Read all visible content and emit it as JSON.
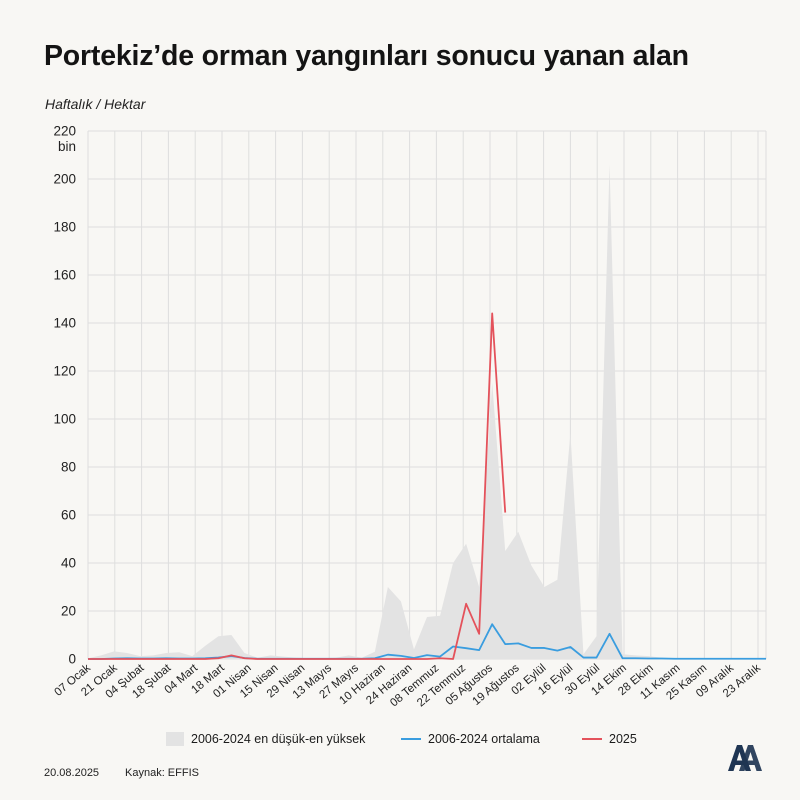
{
  "header": {
    "title": "Portekiz’de orman yangınları sonucu yanan alan",
    "subtitle": "Haftalık / Hektar"
  },
  "footer": {
    "date": "20.08.2025",
    "source": "Kaynak: EFFIS"
  },
  "logo": {
    "text": "AA",
    "icon": "anadolu-agency-logo"
  },
  "colors": {
    "range_fill": "#e3e3e3",
    "average_line": "#3a9ddf",
    "current_line": "#e4525b",
    "grid": "#dedede",
    "axis_text": "#222222"
  },
  "chart_data": {
    "type": "area",
    "xlabel": "",
    "ylabel": "",
    "y_unit_label": "bin",
    "ylim": [
      0,
      220
    ],
    "yticks": [
      0,
      20,
      40,
      60,
      80,
      100,
      120,
      140,
      160,
      180,
      200,
      220
    ],
    "grid": true,
    "legend_position": "bottom",
    "x_tick_labels": [
      "07 Ocak",
      "21 Ocak",
      "04 Şubat",
      "18 Şubat",
      "04 Mart",
      "18 Mart",
      "01 Nisan",
      "15 Nisan",
      "29 Nisan",
      "13 Mayıs",
      "27 Mayıs",
      "10 Haziran",
      "24 Haziran",
      "08 Temmuz",
      "22 Temmuz",
      "05 Ağustos",
      "19 Ağustos",
      "02 Eylül",
      "16 Eylül",
      "30 Eylül",
      "14 Ekim",
      "28 Ekim",
      "11 Kasım",
      "25 Kasım",
      "09 Aralık",
      "23 Aralık"
    ],
    "series": [
      {
        "name": "2006-2024 en düşük-en yüksek",
        "kind": "range",
        "low": [
          0,
          0,
          0,
          0,
          0,
          0,
          0,
          0,
          0,
          0,
          0,
          0,
          0,
          0,
          0,
          0,
          0,
          0,
          0,
          0,
          0,
          0,
          0,
          0,
          0,
          0,
          0,
          0,
          0,
          0,
          0,
          0,
          0,
          0,
          0,
          0,
          0,
          0,
          0,
          0,
          0,
          0,
          0,
          0,
          0,
          0,
          0,
          0,
          0,
          0,
          0,
          0,
          0
        ],
        "high": [
          0.3,
          1.5,
          3.2,
          2.5,
          1.2,
          1.5,
          2.5,
          2.8,
          1.2,
          5.5,
          9.5,
          10,
          2.5,
          0.5,
          1.5,
          1,
          0.5,
          0.3,
          0.3,
          0.5,
          1.5,
          0.5,
          3,
          30,
          24,
          4,
          17.5,
          18,
          40,
          48,
          30,
          115,
          45,
          53,
          39,
          30,
          33,
          94,
          2,
          9.5,
          206,
          2,
          1.5,
          1.2,
          0.5,
          0.3,
          0.3,
          0.3,
          0.3,
          0.2,
          0.2,
          0.2,
          0.2
        ]
      },
      {
        "name": "2006-2024 ortalama",
        "kind": "line",
        "values": [
          0,
          0,
          0.2,
          0.3,
          0.2,
          0.2,
          0.3,
          0.2,
          0.2,
          0.3,
          0.6,
          1.2,
          0.4,
          0.1,
          0.1,
          0.1,
          0.1,
          0.1,
          0.1,
          0.1,
          0.1,
          0.1,
          0.3,
          1.8,
          1.3,
          0.4,
          1.6,
          1,
          5.2,
          4.5,
          3.7,
          14.5,
          6.2,
          6.5,
          4.6,
          4.6,
          3.5,
          5,
          0.6,
          0.6,
          10.5,
          0.3,
          0.3,
          0.2,
          0.2,
          0.1,
          0.1,
          0.1,
          0.1,
          0.1,
          0.1,
          0.1,
          0.1
        ]
      },
      {
        "name": "2025",
        "kind": "line",
        "values": [
          0,
          0,
          0,
          0,
          0,
          0,
          0,
          0,
          0,
          0,
          0.3,
          1.5,
          0.3,
          0,
          0,
          0,
          0,
          0,
          0,
          0,
          0,
          0,
          0,
          0,
          0,
          0,
          0,
          0.3,
          0,
          23,
          10.5,
          144,
          61
        ]
      }
    ]
  }
}
